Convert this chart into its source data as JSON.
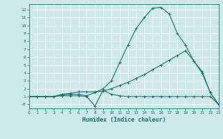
{
  "xlabel": "Humidex (Indice chaleur)",
  "ylabel": "",
  "bg_color": "#cce8e8",
  "line_color": "#1a7070",
  "grid_color": "#ffffff",
  "x_values": [
    0,
    1,
    2,
    3,
    4,
    5,
    6,
    7,
    8,
    9,
    10,
    11,
    12,
    13,
    14,
    15,
    16,
    17,
    18,
    19,
    20,
    21,
    22,
    23
  ],
  "line1": [
    1,
    1,
    1,
    1,
    1.2,
    1.3,
    1.3,
    1.1,
    1.5,
    2,
    3,
    5.3,
    7.5,
    9.6,
    11.0,
    12.2,
    12.3,
    11.5,
    9.0,
    7.5,
    5.5,
    4.0,
    1.5,
    0
  ],
  "line2": [
    1,
    1,
    1,
    1,
    1.3,
    1.4,
    1.6,
    1.6,
    1.6,
    1.7,
    2.0,
    2.4,
    2.8,
    3.3,
    3.8,
    4.4,
    5.0,
    5.6,
    6.2,
    6.8,
    5.5,
    4.2,
    1.5,
    0
  ],
  "line3": [
    1,
    1,
    1,
    1,
    1.1,
    1.1,
    1.1,
    1.0,
    -0.2,
    1.8,
    1.3,
    1.1,
    1.0,
    1.0,
    1.0,
    1.0,
    1.0,
    1.0,
    1.0,
    1.0,
    1.0,
    1.0,
    1.0,
    0
  ],
  "xlim": [
    0,
    23
  ],
  "ylim": [
    -0.5,
    12.7
  ],
  "yticks": [
    0,
    1,
    2,
    3,
    4,
    5,
    6,
    7,
    8,
    9,
    10,
    11,
    12
  ]
}
